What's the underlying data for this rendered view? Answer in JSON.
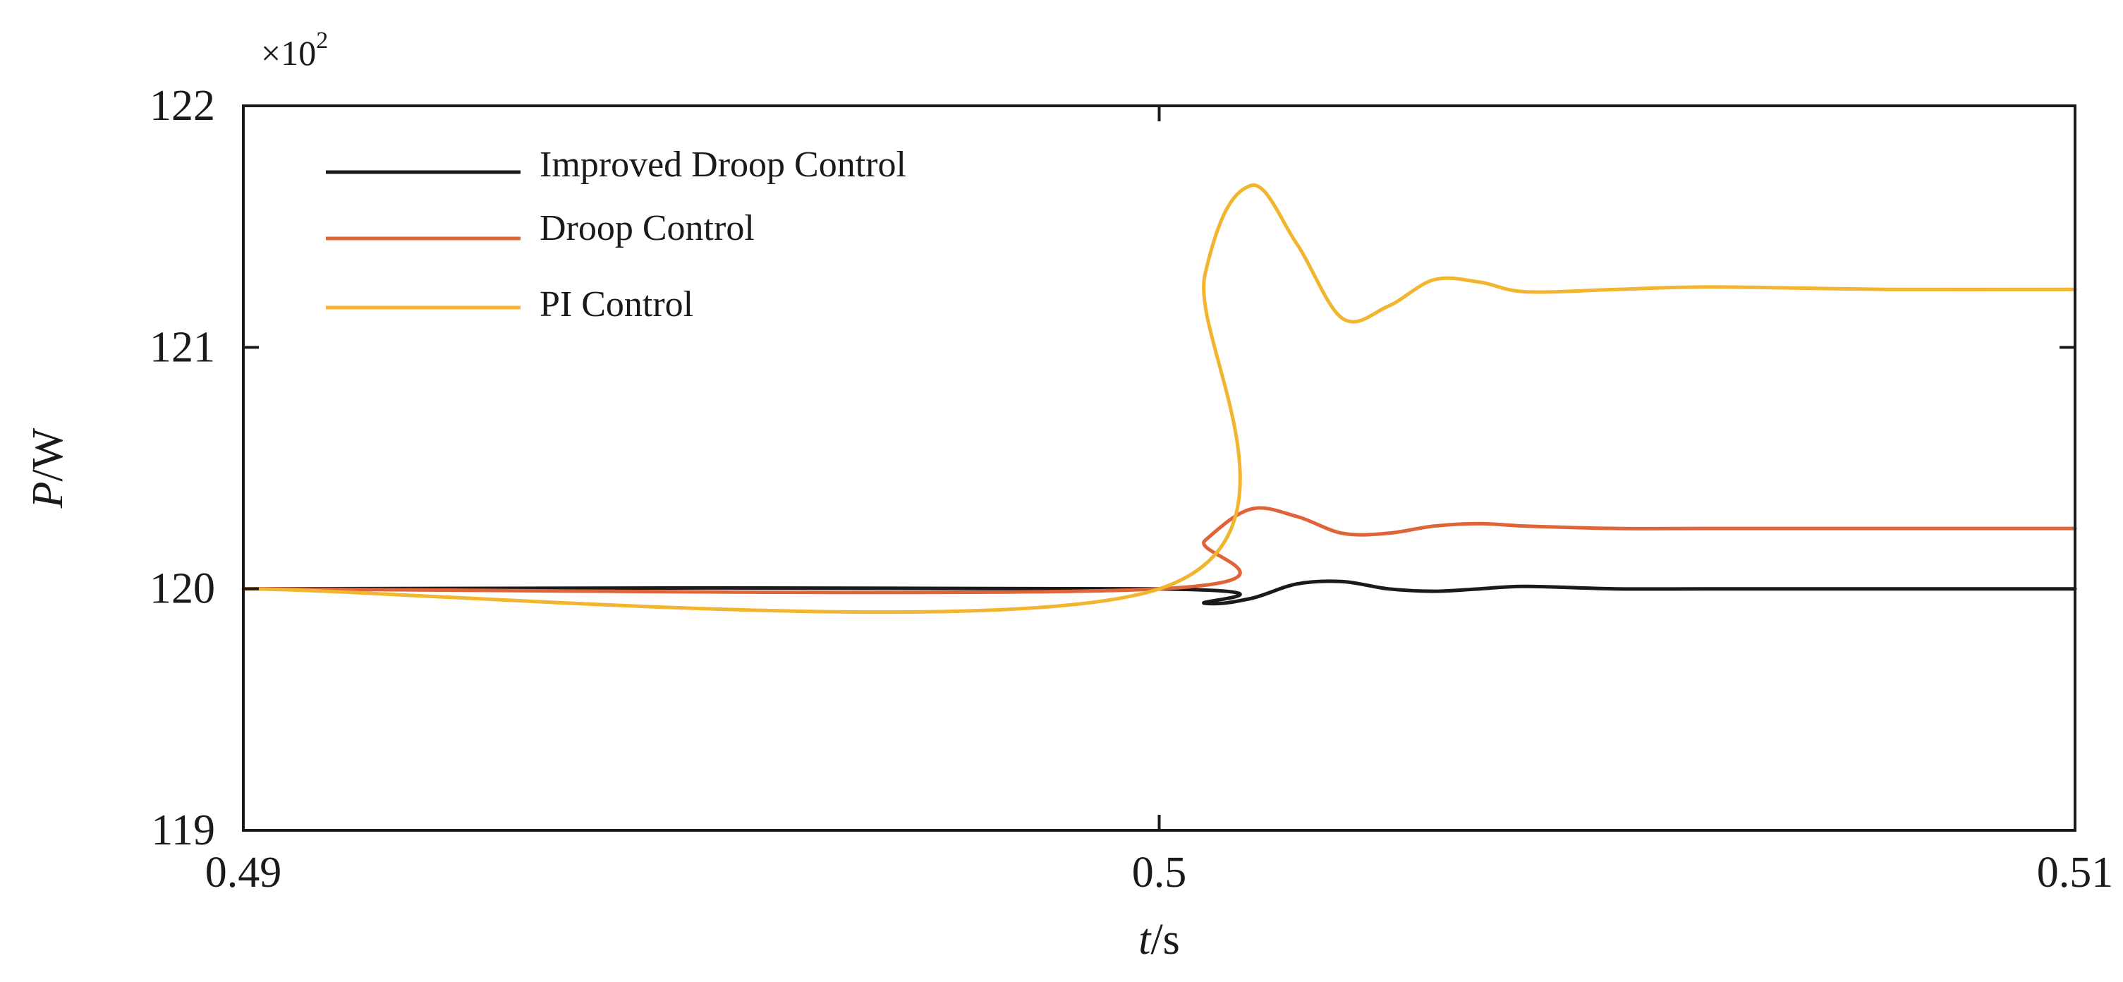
{
  "chart_data": {
    "type": "line",
    "title": "",
    "xlabel_italic": "t",
    "xlabel_unit": "/s",
    "ylabel_italic": "P",
    "ylabel_unit": "/W",
    "multiplier_base": "×10",
    "multiplier_exponent": "2",
    "xlim": [
      0.49,
      0.51
    ],
    "ylim": [
      119,
      122
    ],
    "x_ticks": [
      0.49,
      0.5,
      0.51
    ],
    "x_tick_labels": [
      "0.49",
      "0.5",
      "0.51"
    ],
    "y_ticks": [
      119,
      120,
      121,
      122
    ],
    "y_tick_labels": [
      "119",
      "120",
      "121",
      "122"
    ],
    "legend_position": "top-left",
    "grid": false,
    "series": [
      {
        "name": "Improved Droop Control",
        "color": "#1a1a1a",
        "x": [
          0.49,
          0.5,
          0.5005,
          0.501,
          0.5015,
          0.502,
          0.5025,
          0.503,
          0.5035,
          0.504,
          0.505,
          0.506,
          0.508,
          0.51
        ],
        "y": [
          120.0,
          120.0,
          119.94,
          119.96,
          120.02,
          120.03,
          120.0,
          119.99,
          120.0,
          120.01,
          120.0,
          120.0,
          120.0,
          120.0
        ]
      },
      {
        "name": "Droop Control",
        "color": "#e0643a",
        "x": [
          0.49,
          0.5,
          0.5005,
          0.501,
          0.5015,
          0.502,
          0.5025,
          0.503,
          0.5035,
          0.504,
          0.505,
          0.506,
          0.508,
          0.51
        ],
        "y": [
          120.0,
          120.0,
          120.2,
          120.33,
          120.3,
          120.23,
          120.23,
          120.26,
          120.27,
          120.26,
          120.25,
          120.25,
          120.25,
          120.25
        ]
      },
      {
        "name": "PI Control",
        "color": "#f2b530",
        "x": [
          0.49,
          0.5,
          0.5005,
          0.501,
          0.5015,
          0.502,
          0.5025,
          0.503,
          0.5035,
          0.504,
          0.505,
          0.506,
          0.508,
          0.51
        ],
        "y": [
          120.0,
          120.0,
          121.3,
          121.67,
          121.43,
          121.12,
          121.17,
          121.28,
          121.27,
          121.23,
          121.24,
          121.25,
          121.24,
          121.24
        ]
      }
    ]
  }
}
